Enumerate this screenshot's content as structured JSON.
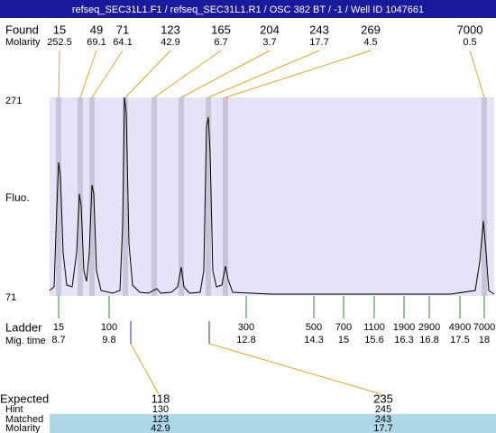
{
  "header": {
    "title": "refseq_SEC31L1.F1 / refseq_SEC31L1.R1 / OSC 382 BT / -1 / Well ID 1047661"
  },
  "found": {
    "label": "Found",
    "sublabel": "Molarity",
    "peaks": [
      {
        "size": 15,
        "molarity": 252.5
      },
      {
        "size": 49,
        "molarity": 69.1
      },
      {
        "size": 71,
        "molarity": 64.1
      },
      {
        "size": 123,
        "molarity": 42.9
      },
      {
        "size": 165,
        "molarity": 6.7
      },
      {
        "size": 204,
        "molarity": 3.7
      },
      {
        "size": 243,
        "molarity": 17.7
      },
      {
        "size": 269,
        "molarity": 4.5
      },
      {
        "size": 7000,
        "molarity": 0.5
      }
    ]
  },
  "y_axis": {
    "label": "Fluo.",
    "max": 271,
    "min": 71
  },
  "ladder": {
    "label": "Ladder",
    "sublabel": "Mig. time",
    "entries": [
      {
        "size": 15,
        "time": 8.7
      },
      {
        "size": 100,
        "time": 9.8
      },
      {
        "size": 300,
        "time": 12.8
      },
      {
        "size": 500,
        "time": 14.3
      },
      {
        "size": 700,
        "time": 15
      },
      {
        "size": 1100,
        "time": 15.6
      },
      {
        "size": 1900,
        "time": 16.3
      },
      {
        "size": 2900,
        "time": 16.8
      },
      {
        "size": 4900,
        "time": 17.5
      },
      {
        "size": 7000,
        "time": 18
      }
    ]
  },
  "expected": {
    "rows": [
      {
        "label": "Expected",
        "values": [
          118,
          235
        ]
      },
      {
        "label": "Hint",
        "values": [
          130,
          245
        ]
      },
      {
        "label": "Matched",
        "values": [
          123,
          243
        ]
      },
      {
        "label": "Molarity",
        "values": [
          42.9,
          17.7
        ]
      }
    ]
  }
}
